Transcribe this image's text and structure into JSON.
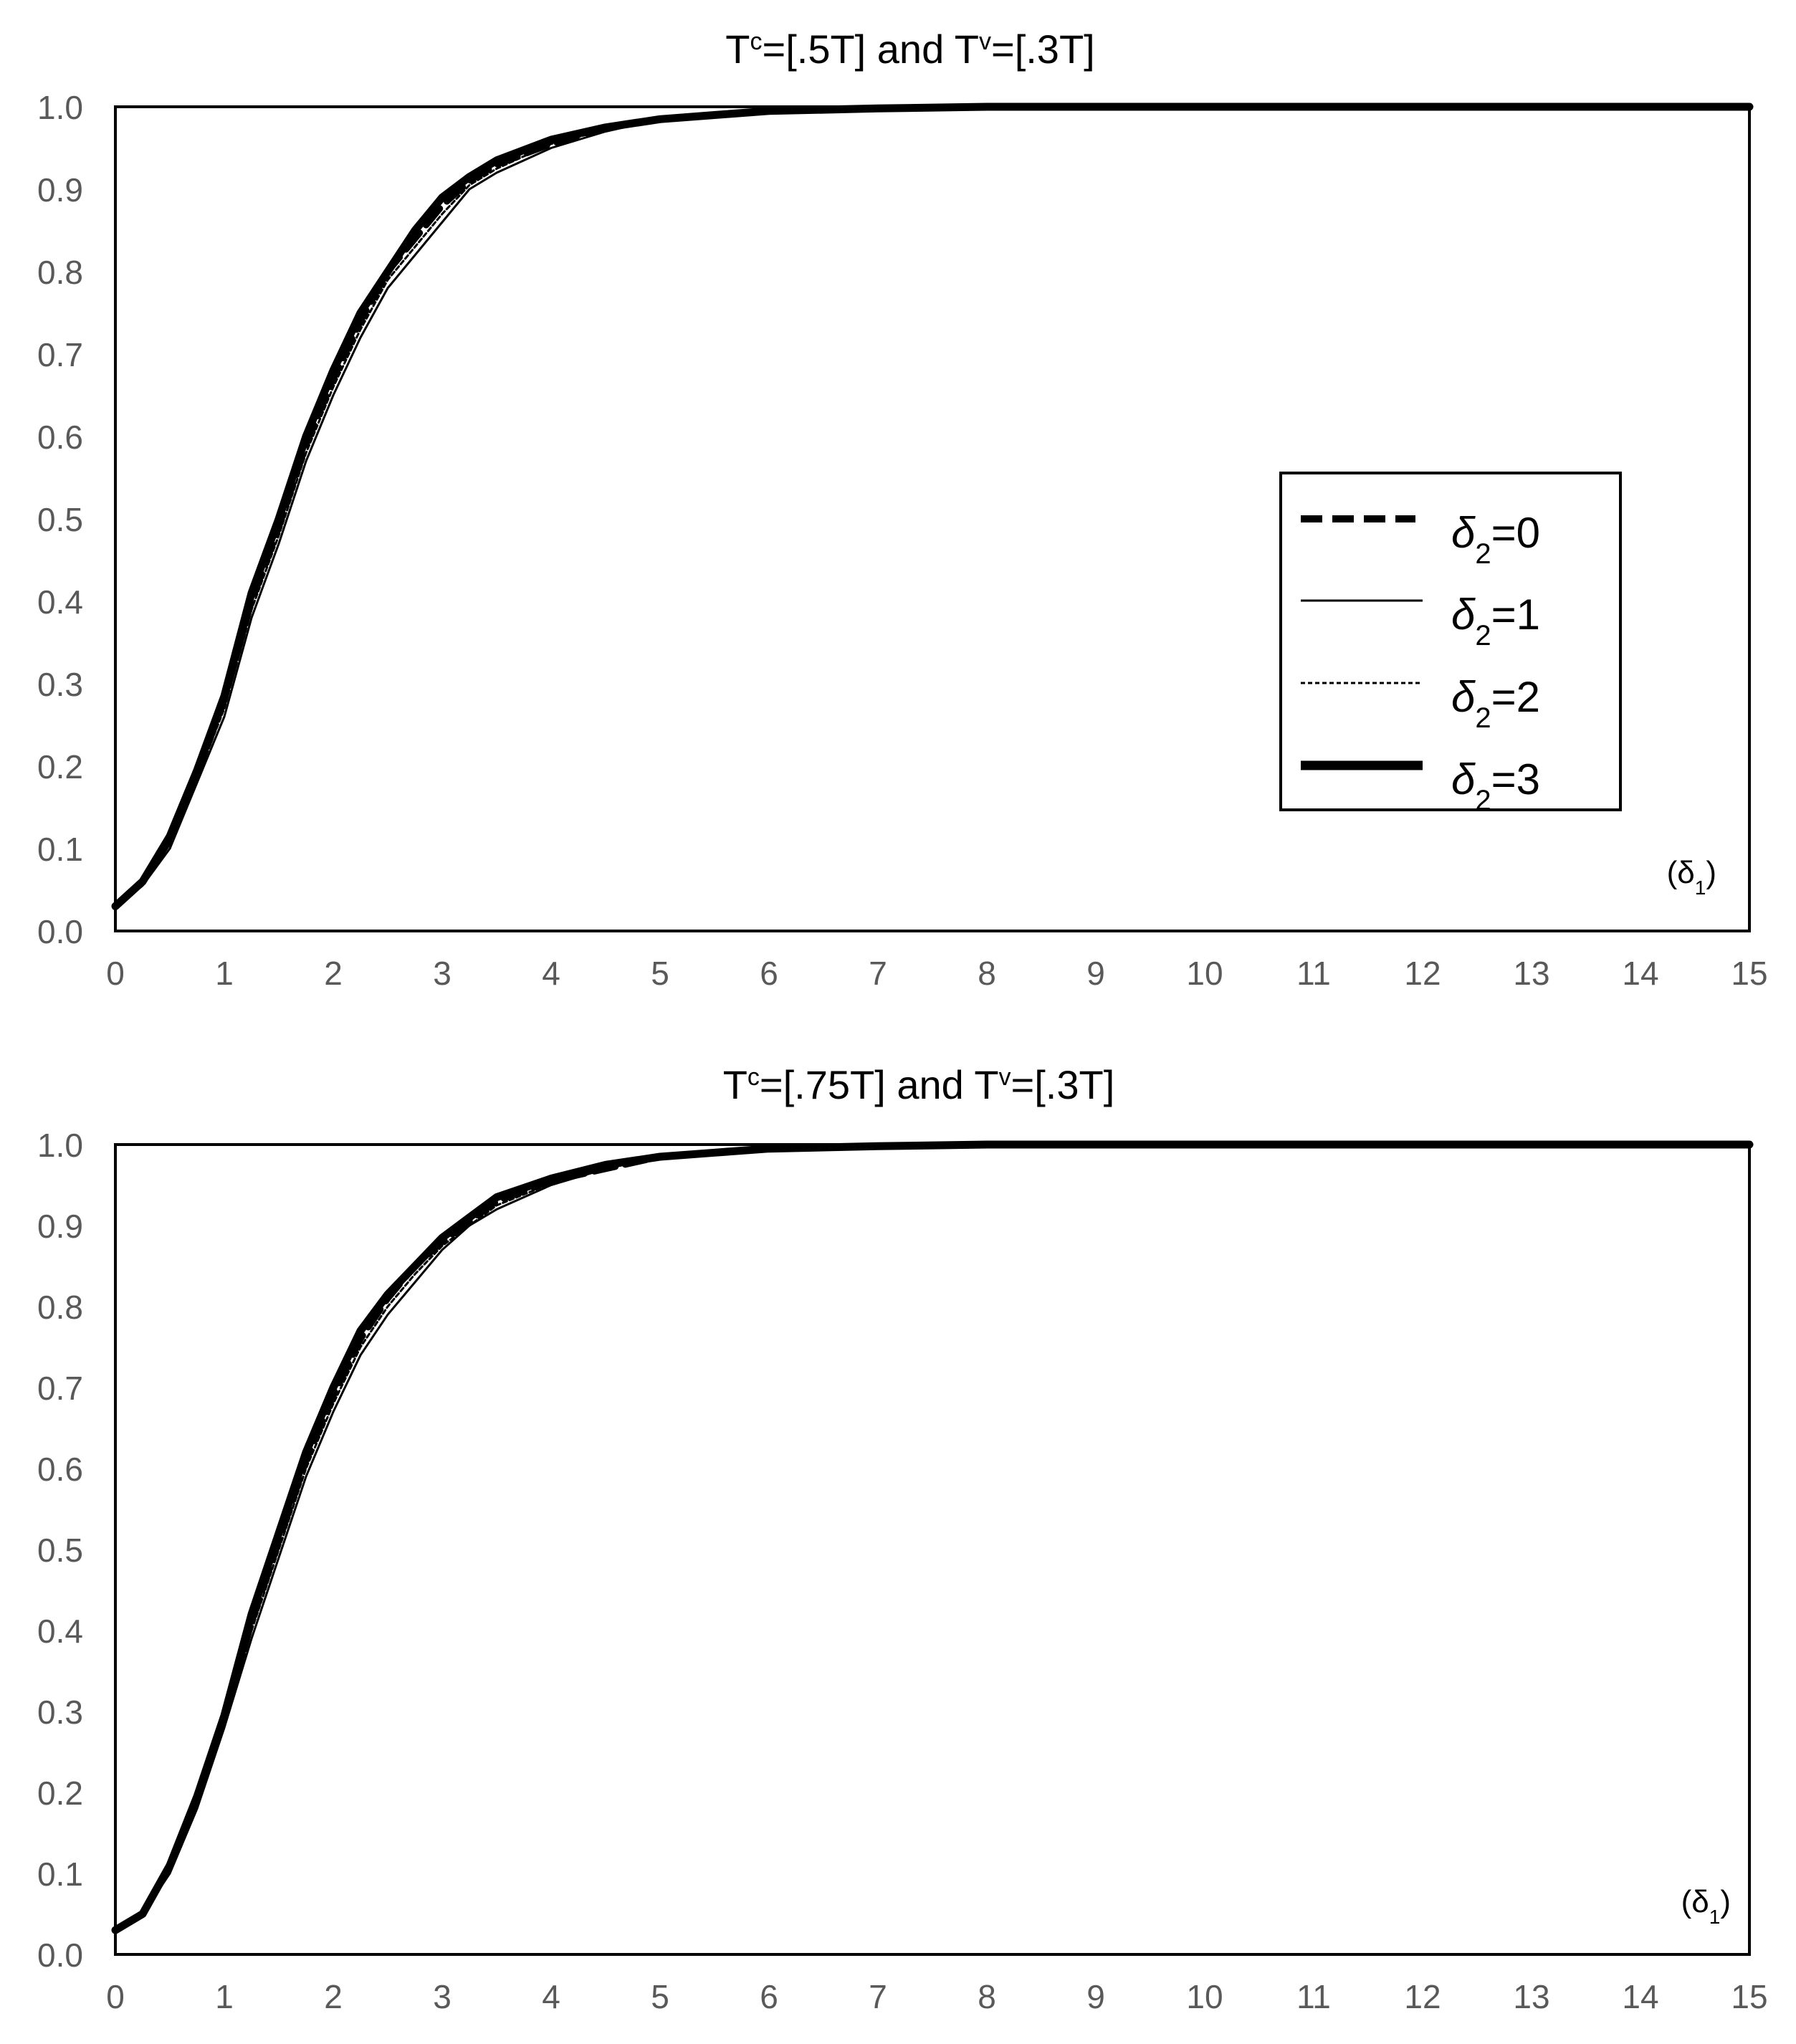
{
  "chart_data": [
    {
      "type": "line",
      "title": {
        "base1": "T",
        "sup1": "c",
        "mid": "=[.5T] and T",
        "sup2": "v",
        "end": "=[.3T]"
      },
      "xlabel": {
        "symbol": "(δ",
        "sub": "1",
        "close": ")"
      },
      "ylabel": "",
      "xlim": [
        0,
        15
      ],
      "ylim": [
        0,
        1
      ],
      "xticks": [
        "0",
        "1",
        "2",
        "3",
        "4",
        "5",
        "6",
        "7",
        "8",
        "9",
        "10",
        "11",
        "12",
        "13",
        "14",
        "15"
      ],
      "yticks": [
        "0.0",
        "0.1",
        "0.2",
        "0.3",
        "0.4",
        "0.5",
        "0.6",
        "0.7",
        "0.8",
        "0.9",
        "1.0"
      ],
      "grid": false,
      "legend_position": "center-right",
      "series": [
        {
          "name": "δ2=0",
          "label_symbol": "δ",
          "label_sub": "2",
          "label_rest": "=0",
          "style": "dashed-thick",
          "x": [
            0,
            0.25,
            0.5,
            0.75,
            1,
            1.25,
            1.5,
            1.75,
            2,
            2.25,
            2.5,
            2.75,
            3,
            3.25,
            3.5,
            4,
            4.5,
            5,
            5.5,
            6,
            7,
            8,
            15
          ],
          "y": [
            0.03,
            0.06,
            0.11,
            0.19,
            0.28,
            0.4,
            0.49,
            0.59,
            0.67,
            0.74,
            0.8,
            0.84,
            0.88,
            0.91,
            0.93,
            0.955,
            0.975,
            0.985,
            0.99,
            0.995,
            0.998,
            1.0,
            1.0
          ]
        },
        {
          "name": "δ2=1",
          "label_symbol": "δ",
          "label_sub": "2",
          "label_rest": "=1",
          "style": "solid-thin",
          "x": [
            0,
            0.25,
            0.5,
            0.75,
            1,
            1.25,
            1.5,
            1.75,
            2,
            2.25,
            2.5,
            2.75,
            3,
            3.25,
            3.5,
            4,
            4.5,
            5,
            5.5,
            6,
            7,
            8,
            15
          ],
          "y": [
            0.03,
            0.055,
            0.1,
            0.18,
            0.26,
            0.38,
            0.47,
            0.57,
            0.65,
            0.72,
            0.78,
            0.82,
            0.86,
            0.9,
            0.92,
            0.95,
            0.97,
            0.985,
            0.99,
            0.995,
            0.998,
            1.0,
            1.0
          ]
        },
        {
          "name": "δ2=2",
          "label_symbol": "δ",
          "label_sub": "2",
          "label_rest": "=2",
          "style": "dotted-thin",
          "x": [
            0,
            0.25,
            0.5,
            0.75,
            1,
            1.25,
            1.5,
            1.75,
            2,
            2.25,
            2.5,
            2.75,
            3,
            3.25,
            3.5,
            4,
            4.5,
            5,
            5.5,
            6,
            7,
            8,
            15
          ],
          "y": [
            0.03,
            0.058,
            0.11,
            0.185,
            0.27,
            0.39,
            0.48,
            0.58,
            0.66,
            0.73,
            0.79,
            0.83,
            0.87,
            0.905,
            0.925,
            0.955,
            0.972,
            0.985,
            0.99,
            0.995,
            0.998,
            1.0,
            1.0
          ]
        },
        {
          "name": "δ2=3",
          "label_symbol": "δ",
          "label_sub": "2",
          "label_rest": "=3",
          "style": "solid-thick",
          "x": [
            0,
            0.25,
            0.5,
            0.75,
            1,
            1.25,
            1.5,
            1.75,
            2,
            2.25,
            2.5,
            2.75,
            3,
            3.25,
            3.5,
            4,
            4.5,
            5,
            5.5,
            6,
            7,
            8,
            15
          ],
          "y": [
            0.03,
            0.06,
            0.115,
            0.195,
            0.285,
            0.41,
            0.5,
            0.6,
            0.68,
            0.75,
            0.8,
            0.85,
            0.89,
            0.915,
            0.935,
            0.96,
            0.975,
            0.985,
            0.99,
            0.995,
            0.998,
            1.0,
            1.0
          ]
        }
      ]
    },
    {
      "type": "line",
      "title": {
        "base1": "T",
        "sup1": "c",
        "mid": "=[.75T] and T",
        "sup2": "v",
        "end": "=[.3T]"
      },
      "xlabel": {
        "symbol": "(δ",
        "sub": "1",
        "close": ")"
      },
      "ylabel": "",
      "xlim": [
        0,
        15
      ],
      "ylim": [
        0,
        1
      ],
      "xticks": [
        "0",
        "1",
        "2",
        "3",
        "4",
        "5",
        "6",
        "7",
        "8",
        "9",
        "10",
        "11",
        "12",
        "13",
        "14",
        "15"
      ],
      "yticks": [
        "0.0",
        "0.1",
        "0.2",
        "0.3",
        "0.4",
        "0.5",
        "0.6",
        "0.7",
        "0.8",
        "0.9",
        "1.0"
      ],
      "grid": false,
      "series": [
        {
          "name": "δ2=0",
          "style": "dashed-thick",
          "x": [
            0,
            0.25,
            0.5,
            0.75,
            1,
            1.25,
            1.5,
            1.75,
            2,
            2.25,
            2.5,
            2.75,
            3,
            3.25,
            3.5,
            4,
            4.5,
            5,
            5.5,
            6,
            7,
            8,
            15
          ],
          "y": [
            0.03,
            0.05,
            0.11,
            0.19,
            0.29,
            0.41,
            0.51,
            0.61,
            0.69,
            0.76,
            0.81,
            0.85,
            0.88,
            0.905,
            0.93,
            0.955,
            0.97,
            0.985,
            0.99,
            0.995,
            0.998,
            1.0,
            1.0
          ]
        },
        {
          "name": "δ2=1",
          "style": "solid-thin",
          "x": [
            0,
            0.25,
            0.5,
            0.75,
            1,
            1.25,
            1.5,
            1.75,
            2,
            2.25,
            2.5,
            2.75,
            3,
            3.25,
            3.5,
            4,
            4.5,
            5,
            5.5,
            6,
            7,
            8,
            15
          ],
          "y": [
            0.03,
            0.05,
            0.1,
            0.18,
            0.28,
            0.39,
            0.49,
            0.59,
            0.67,
            0.74,
            0.79,
            0.83,
            0.87,
            0.9,
            0.92,
            0.95,
            0.97,
            0.985,
            0.99,
            0.995,
            0.998,
            1.0,
            1.0
          ]
        },
        {
          "name": "δ2=2",
          "style": "dotted-thin",
          "x": [
            0,
            0.25,
            0.5,
            0.75,
            1,
            1.25,
            1.5,
            1.75,
            2,
            2.25,
            2.5,
            2.75,
            3,
            3.25,
            3.5,
            4,
            4.5,
            5,
            5.5,
            6,
            7,
            8,
            15
          ],
          "y": [
            0.03,
            0.05,
            0.105,
            0.185,
            0.285,
            0.4,
            0.5,
            0.6,
            0.68,
            0.75,
            0.8,
            0.84,
            0.875,
            0.9,
            0.925,
            0.952,
            0.97,
            0.985,
            0.99,
            0.995,
            0.998,
            1.0,
            1.0
          ]
        },
        {
          "name": "δ2=3",
          "style": "solid-thick",
          "x": [
            0,
            0.25,
            0.5,
            0.75,
            1,
            1.25,
            1.5,
            1.75,
            2,
            2.25,
            2.5,
            2.75,
            3,
            3.25,
            3.5,
            4,
            4.5,
            5,
            5.5,
            6,
            7,
            8,
            15
          ],
          "y": [
            0.03,
            0.05,
            0.11,
            0.195,
            0.295,
            0.42,
            0.52,
            0.62,
            0.7,
            0.77,
            0.815,
            0.85,
            0.885,
            0.91,
            0.935,
            0.958,
            0.975,
            0.985,
            0.99,
            0.995,
            0.998,
            1.0,
            1.0
          ]
        }
      ]
    }
  ]
}
